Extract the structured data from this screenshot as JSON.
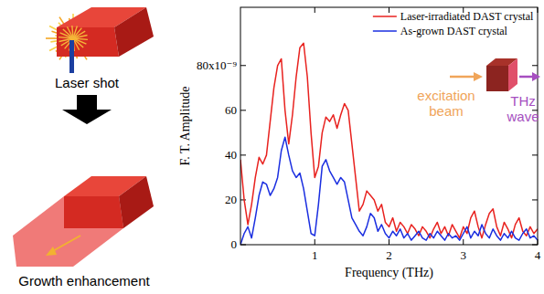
{
  "chart_data": {
    "type": "line",
    "x_label": "Frequency (THz)",
    "y_label": "F. T. Amplitude",
    "xlim": [
      0,
      4
    ],
    "xticks": [
      1,
      2,
      3,
      4
    ],
    "ylim": [
      0,
      106
    ],
    "yticks": [
      0,
      20,
      40,
      60,
      {
        "value": 80,
        "label": "80x10⁻⁹"
      }
    ],
    "grid": false,
    "legend": "top-right",
    "annotations": [
      "excitation beam",
      "THz wave"
    ],
    "x": [
      0,
      0.05,
      0.1,
      0.15,
      0.2,
      0.25,
      0.3,
      0.35,
      0.4,
      0.45,
      0.5,
      0.55,
      0.6,
      0.65,
      0.7,
      0.75,
      0.8,
      0.85,
      0.9,
      0.95,
      1.0,
      1.05,
      1.1,
      1.15,
      1.2,
      1.25,
      1.3,
      1.35,
      1.4,
      1.45,
      1.5,
      1.55,
      1.6,
      1.65,
      1.7,
      1.75,
      1.8,
      1.85,
      1.9,
      1.95,
      2.0,
      2.05,
      2.1,
      2.15,
      2.2,
      2.25,
      2.3,
      2.35,
      2.4,
      2.45,
      2.5,
      2.55,
      2.6,
      2.65,
      2.7,
      2.75,
      2.8,
      2.85,
      2.9,
      2.95,
      3.0,
      3.05,
      3.1,
      3.15,
      3.2,
      3.25,
      3.3,
      3.35,
      3.4,
      3.45,
      3.5,
      3.55,
      3.6,
      3.65,
      3.7,
      3.75,
      3.8,
      3.85,
      3.9,
      3.95,
      4.0
    ],
    "series": [
      {
        "name": "Laser-irradiated DAST crystal",
        "color": "#e8221f",
        "values": [
          38,
          20,
          9,
          18,
          30,
          39,
          36,
          40,
          55,
          70,
          80,
          83,
          60,
          45,
          58,
          75,
          88,
          90,
          75,
          50,
          30,
          35,
          50,
          57,
          55,
          58,
          52,
          58,
          63,
          60,
          45,
          30,
          15,
          18,
          24,
          22,
          20,
          15,
          18,
          10,
          8,
          12,
          6,
          10,
          8,
          5,
          9,
          7,
          4,
          8,
          6,
          3,
          7,
          10,
          5,
          8,
          4,
          9,
          6,
          3,
          8,
          5,
          12,
          15,
          8,
          3,
          9,
          14,
          16,
          8,
          4,
          10,
          7,
          3,
          9,
          12,
          6,
          4,
          8,
          5,
          7
        ]
      },
      {
        "name": "As-grown DAST crystal",
        "color": "#1a2ee0",
        "values": [
          0,
          5,
          8,
          3,
          12,
          22,
          28,
          27,
          22,
          25,
          30,
          42,
          48,
          40,
          33,
          30,
          32,
          25,
          15,
          5,
          4,
          18,
          35,
          38,
          33,
          30,
          27,
          30,
          28,
          20,
          12,
          9,
          6,
          4,
          8,
          14,
          12,
          6,
          9,
          5,
          3,
          6,
          4,
          7,
          3,
          5,
          2,
          4,
          6,
          3,
          2,
          5,
          3,
          6,
          4,
          2,
          5,
          3,
          4,
          2,
          5,
          8,
          3,
          6,
          4,
          9,
          5,
          3,
          7,
          4,
          2,
          5,
          3,
          6,
          3,
          2,
          5,
          7,
          3,
          4,
          2
        ]
      }
    ]
  },
  "diagram": {
    "laser_label": "Laser shot",
    "growth_label": "Growth enhancement"
  }
}
